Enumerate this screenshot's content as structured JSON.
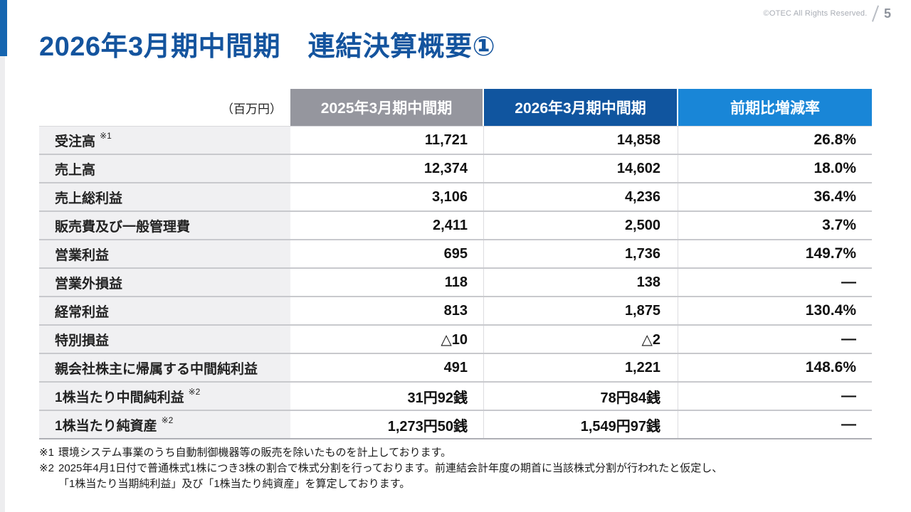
{
  "page": {
    "copyright": "©OTEC All Rights Reserved.",
    "page_number": "5",
    "title": "2026年3月期中間期　連結決算概要①"
  },
  "colors": {
    "title_blue": "#14549e",
    "accent_bar_blue": "#1565b0",
    "header_gray": "#95969e",
    "header_dark_blue": "#10559f",
    "header_light_blue": "#1986d7",
    "label_bg": "#f0f0f2",
    "divider": "#c8c9cd"
  },
  "table": {
    "unit_label": "（百万円）",
    "columns": [
      "2025年3月期中間期",
      "2026年3月期中間期",
      "前期比増減率"
    ],
    "rows": [
      {
        "label": "受注高",
        "note": "※1",
        "prev": "11,721",
        "curr": "14,858",
        "change": "26.8%"
      },
      {
        "label": "売上高",
        "note": "",
        "prev": "12,374",
        "curr": "14,602",
        "change": "18.0%"
      },
      {
        "label": "売上総利益",
        "note": "",
        "prev": "3,106",
        "curr": "4,236",
        "change": "36.4%"
      },
      {
        "label": "販売費及び一般管理費",
        "note": "",
        "prev": "2,411",
        "curr": "2,500",
        "change": "3.7%"
      },
      {
        "label": "営業利益",
        "note": "",
        "prev": "695",
        "curr": "1,736",
        "change": "149.7%"
      },
      {
        "label": "営業外損益",
        "note": "",
        "prev": "118",
        "curr": "138",
        "change": "—"
      },
      {
        "label": "経常利益",
        "note": "",
        "prev": "813",
        "curr": "1,875",
        "change": "130.4%"
      },
      {
        "label": "特別損益",
        "note": "",
        "prev": "△10",
        "curr": "△2",
        "change": "—"
      },
      {
        "label": "親会社株主に帰属する中間純利益",
        "note": "",
        "prev": "491",
        "curr": "1,221",
        "change": "148.6%"
      },
      {
        "label": "1株当たり中間純利益",
        "note": "※2",
        "prev": "31円92銭",
        "curr": "78円84銭",
        "change": "—"
      },
      {
        "label": "1株当たり純資産",
        "note": "※2",
        "prev": "1,273円50銭",
        "curr": "1,549円97銭",
        "change": "—"
      }
    ]
  },
  "footnotes": [
    {
      "marker": "※1",
      "lines": [
        "環境システム事業のうち自動制御機器等の販売を除いたものを計上しております。"
      ]
    },
    {
      "marker": "※2",
      "lines": [
        "2025年4月1日付で普通株式1株につき3株の割合で株式分割を行っております。前連結会計年度の期首に当該株式分割が行われたと仮定し、",
        "「1株当たり当期純利益」及び「1株当たり純資産」を算定しております。"
      ]
    }
  ]
}
